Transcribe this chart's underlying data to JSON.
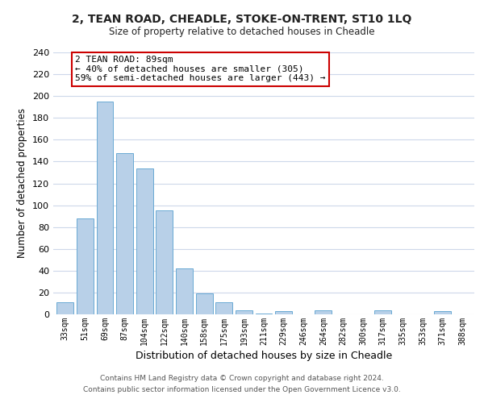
{
  "title": "2, TEAN ROAD, CHEADLE, STOKE-ON-TRENT, ST10 1LQ",
  "subtitle": "Size of property relative to detached houses in Cheadle",
  "xlabel": "Distribution of detached houses by size in Cheadle",
  "ylabel": "Number of detached properties",
  "bar_labels": [
    "33sqm",
    "51sqm",
    "69sqm",
    "87sqm",
    "104sqm",
    "122sqm",
    "140sqm",
    "158sqm",
    "175sqm",
    "193sqm",
    "211sqm",
    "229sqm",
    "246sqm",
    "264sqm",
    "282sqm",
    "300sqm",
    "317sqm",
    "335sqm",
    "353sqm",
    "371sqm",
    "388sqm"
  ],
  "bar_values": [
    11,
    88,
    195,
    148,
    134,
    95,
    42,
    19,
    11,
    4,
    1,
    3,
    0,
    4,
    0,
    0,
    4,
    0,
    0,
    3,
    0
  ],
  "bar_color": "#b8d0e8",
  "bar_edge_color": "#6aaad4",
  "annotation_text": "2 TEAN ROAD: 89sqm\n← 40% of detached houses are smaller (305)\n59% of semi-detached houses are larger (443) →",
  "annotation_box_color": "#ffffff",
  "annotation_box_edge": "#cc0000",
  "ylim": [
    0,
    240
  ],
  "yticks": [
    0,
    20,
    40,
    60,
    80,
    100,
    120,
    140,
    160,
    180,
    200,
    220,
    240
  ],
  "footer_line1": "Contains HM Land Registry data © Crown copyright and database right 2024.",
  "footer_line2": "Contains public sector information licensed under the Open Government Licence v3.0.",
  "bg_color": "#ffffff",
  "grid_color": "#cdd8ea"
}
